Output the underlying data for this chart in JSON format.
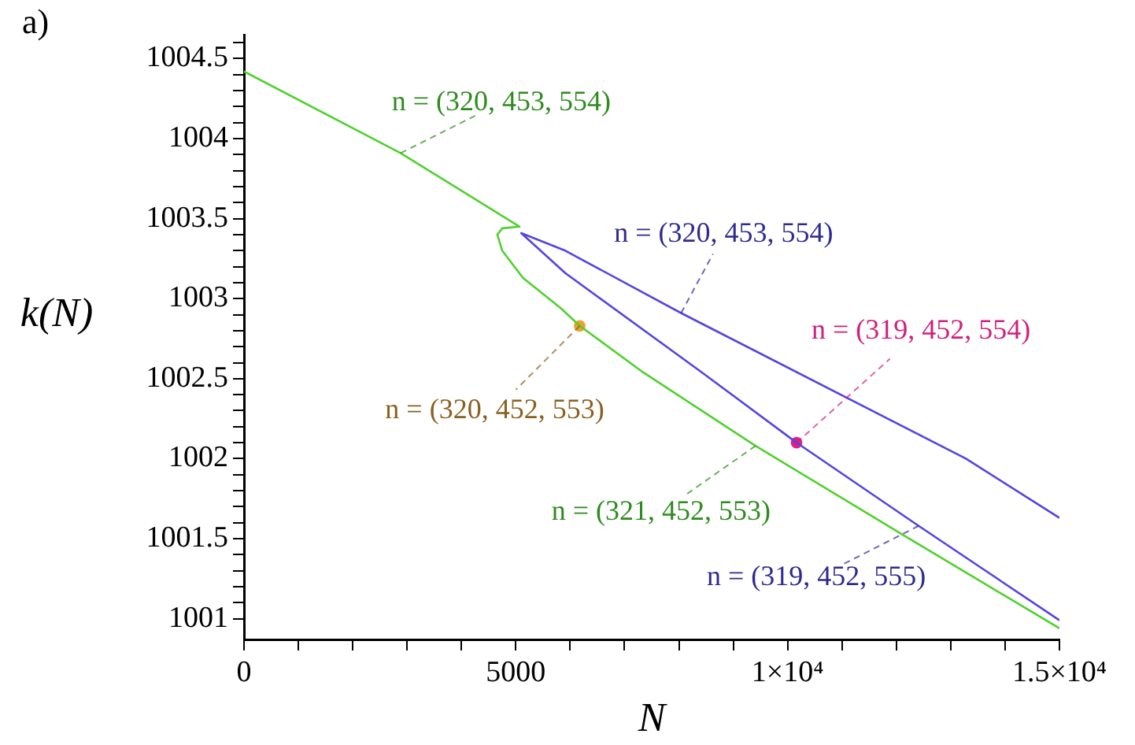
{
  "chart_data": {
    "type": "line",
    "xlabel": "N",
    "ylabel": "k(N)",
    "xlim": [
      0,
      15000
    ],
    "ylim": [
      1000.87,
      1004.65
    ],
    "xticks": [
      0,
      {
        "value": 1000,
        "label": null
      },
      {
        "value": 2000,
        "label": null
      },
      {
        "value": 3000,
        "label": null
      },
      {
        "value": 4000,
        "label": null
      },
      5000,
      {
        "value": 6000,
        "label": null
      },
      {
        "value": 7000,
        "label": null
      },
      {
        "value": 8000,
        "label": null
      },
      {
        "value": 9000,
        "label": null
      },
      {
        "value": 10000,
        "label": "1×10⁴"
      },
      {
        "value": 11000,
        "label": null
      },
      {
        "value": 12000,
        "label": null
      },
      {
        "value": 13000,
        "label": null
      },
      {
        "value": 14000,
        "label": null
      },
      {
        "value": 15000,
        "label": "1.5×10⁴"
      }
    ],
    "yticks": [
      1001,
      {
        "value": 1001.1,
        "label": null
      },
      {
        "value": 1001.2,
        "label": null
      },
      {
        "value": 1001.3,
        "label": null
      },
      {
        "value": 1001.4,
        "label": null
      },
      1001.5,
      {
        "value": 1001.6,
        "label": null
      },
      {
        "value": 1001.7,
        "label": null
      },
      {
        "value": 1001.8,
        "label": null
      },
      {
        "value": 1001.9,
        "label": null
      },
      1002,
      {
        "value": 1002.1,
        "label": null
      },
      {
        "value": 1002.2,
        "label": null
      },
      {
        "value": 1002.3,
        "label": null
      },
      {
        "value": 1002.4,
        "label": null
      },
      1002.5,
      {
        "value": 1002.6,
        "label": null
      },
      {
        "value": 1002.7,
        "label": null
      },
      {
        "value": 1002.8,
        "label": null
      },
      {
        "value": 1002.9,
        "label": null
      },
      1003,
      {
        "value": 1003.1,
        "label": null
      },
      {
        "value": 1003.2,
        "label": null
      },
      {
        "value": 1003.3,
        "label": null
      },
      {
        "value": 1003.4,
        "label": null
      },
      1003.5,
      {
        "value": 1003.6,
        "label": null
      },
      {
        "value": 1003.7,
        "label": null
      },
      {
        "value": 1003.8,
        "label": null
      },
      {
        "value": 1003.9,
        "label": null
      },
      1004,
      {
        "value": 1004.1,
        "label": null
      },
      {
        "value": 1004.2,
        "label": null
      },
      {
        "value": 1004.3,
        "label": null
      },
      {
        "value": 1004.4,
        "label": null
      },
      1004.5,
      {
        "value": 1004.6,
        "label": null
      }
    ],
    "grid": false,
    "legend": false,
    "series": [
      {
        "type": "line",
        "color": "#4fd12f",
        "x": [
          0,
          2880,
          5070,
          4750,
          4660,
          4750,
          5130,
          5830,
          6175,
          7340,
          9410,
          12090,
          15000
        ],
        "values": [
          1004.42,
          1003.91,
          1003.45,
          1003.44,
          1003.4,
          1003.3,
          1003.13,
          1002.94,
          1002.83,
          1002.54,
          1002.08,
          1001.53,
          1000.94
        ]
      },
      {
        "type": "line",
        "color": "#5544e0",
        "x": [
          15000,
          13280,
          8040,
          5910,
          5100,
          5910,
          8420,
          10165,
          12410,
          15000
        ],
        "values": [
          1001.63,
          1002.0,
          1002.91,
          1003.3,
          1003.41,
          1003.16,
          1002.54,
          1002.1,
          1001.58,
          1000.99
        ]
      },
      {
        "type": "scatter",
        "color": "#f0a030",
        "x": [
          6175
        ],
        "values": [
          1002.83
        ]
      },
      {
        "type": "scatter",
        "color": "#e0208a",
        "x": [
          10165
        ],
        "values": [
          1002.1
        ]
      }
    ],
    "annotations": [
      "a)",
      {
        "text": "n = (320, 453, 554)",
        "x": 2880,
        "y": 1003.91
      },
      {
        "text": "n = (320, 453, 554)",
        "x": 8040,
        "y": 1002.91
      },
      {
        "text": "n = (319, 452, 554)",
        "x": 10165,
        "y": 1002.1
      },
      {
        "text": "n = (320, 452, 553)",
        "x": 6175,
        "y": 1002.83
      },
      {
        "text": "n = (321, 452, 553)",
        "x": 9410,
        "y": 1002.08
      },
      {
        "text": "n = (319, 452, 555)",
        "x": 12410,
        "y": 1001.58
      }
    ]
  }
}
